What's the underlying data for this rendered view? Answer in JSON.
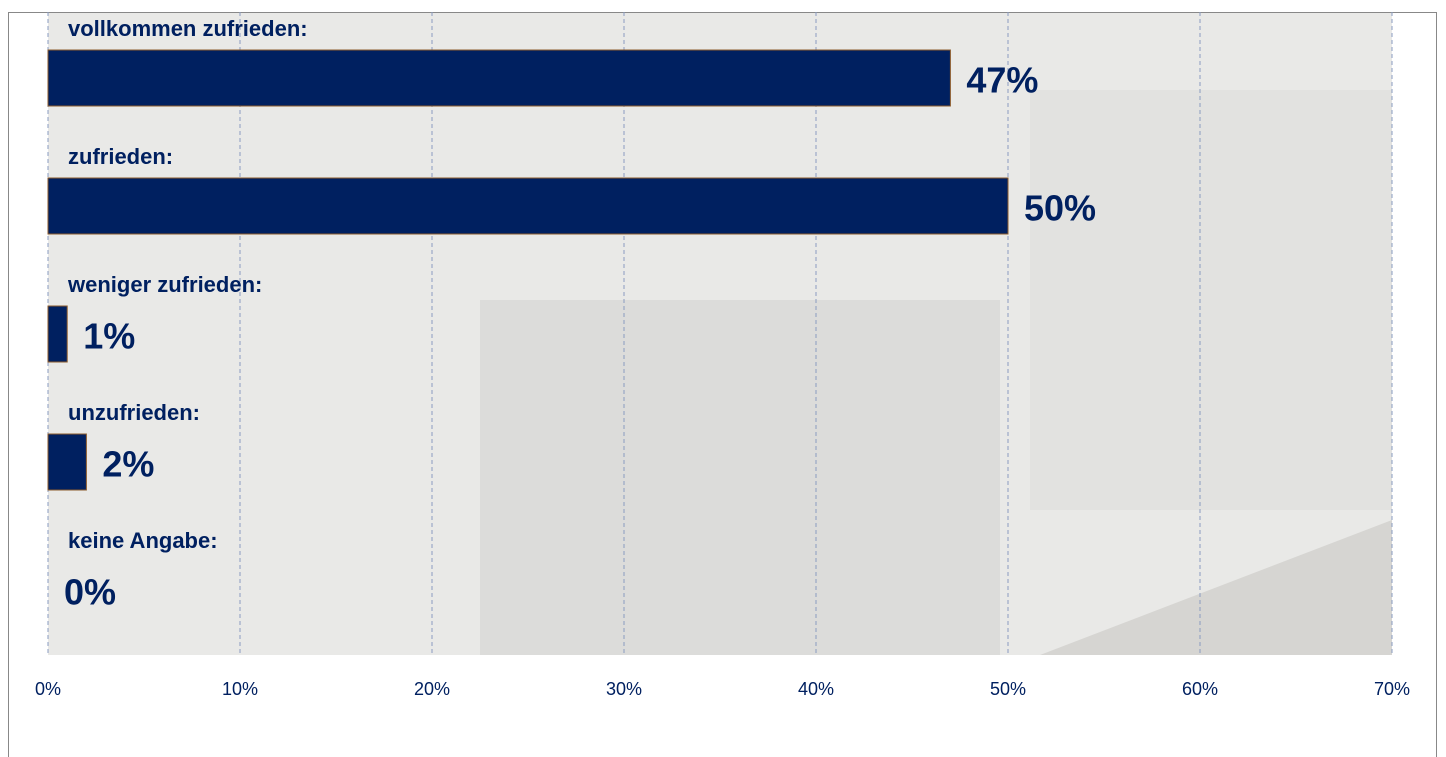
{
  "chart_data": {
    "type": "bar",
    "orientation": "horizontal",
    "categories": [
      "vollkommen zufrieden:",
      "zufrieden:",
      "weniger zufrieden:",
      "unzufrieden:",
      "keine Angabe:"
    ],
    "values": [
      47,
      50,
      1,
      2,
      0
    ],
    "value_labels": [
      "47%",
      "50%",
      "1%",
      "2%",
      "0%"
    ],
    "color": "#002060",
    "xlim": [
      0,
      70
    ],
    "xticks": [
      {
        "value": 0,
        "label": "0%"
      },
      {
        "value": 10,
        "label": "10%"
      },
      {
        "value": 20,
        "label": "20%"
      },
      {
        "value": 30,
        "label": "30%"
      },
      {
        "value": 40,
        "label": "40%"
      },
      {
        "value": 50,
        "label": "50%"
      },
      {
        "value": 60,
        "label": "60%"
      },
      {
        "value": 70,
        "label": "70%"
      }
    ],
    "grid": true
  }
}
